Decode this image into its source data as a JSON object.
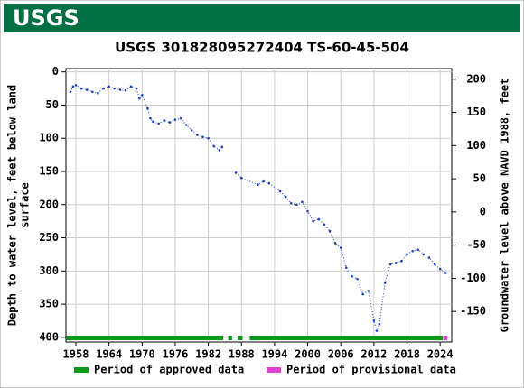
{
  "header": {
    "logo": "USGS"
  },
  "chart_data": {
    "type": "line",
    "title": "USGS 301828095272404 TS-60-45-504",
    "ylabel": [
      "Depth to water level, feet below land",
      "surface"
    ],
    "y2label": "Groundwater level above NAVD 1988, feet",
    "xlim": [
      1956.2,
      2026.1
    ],
    "xticks": [
      1958,
      1964,
      1970,
      1976,
      1982,
      1988,
      1994,
      2000,
      2006,
      2012,
      2018,
      2024
    ],
    "ylim": [
      -5,
      407
    ],
    "y_inverted": true,
    "yticks": [
      0,
      50,
      100,
      150,
      200,
      250,
      300,
      350,
      400
    ],
    "y2lim": [
      -196,
      216
    ],
    "y2ticks": [
      200,
      150,
      100,
      50,
      0,
      -50,
      -100,
      -150
    ],
    "grid": true,
    "series": [
      {
        "name": "Depth to water level",
        "color": "#1a3fc0",
        "x": [
          1957,
          1957.5,
          1958,
          1959,
          1960,
          1961,
          1962,
          1963,
          1964,
          1965,
          1966,
          1967,
          1968,
          1969,
          1969.5,
          1970,
          1971,
          1971.5,
          1972,
          1973,
          1974,
          1975,
          1976,
          1977,
          1978,
          1979,
          1980,
          1981,
          1982,
          1983,
          1984,
          1984.5,
          1985.5,
          1987,
          1988,
          1991,
          1992,
          1993,
          1995,
          1996,
          1997,
          1998,
          1999,
          2000,
          2001,
          2002,
          2003,
          2004,
          2005,
          2006,
          2007,
          2008,
          2009,
          2010,
          2011,
          2012,
          2012.5,
          2013,
          2014,
          2015,
          2016,
          2017,
          2018,
          2019,
          2020,
          2021,
          2022,
          2023,
          2024,
          2025
        ],
        "values": [
          30,
          22,
          20,
          25,
          27,
          30,
          32,
          25,
          22,
          25,
          27,
          28,
          22,
          25,
          40,
          35,
          55,
          70,
          75,
          78,
          73,
          76,
          72,
          70,
          80,
          88,
          95,
          98,
          100,
          112,
          118,
          113,
          null,
          152,
          160,
          170,
          165,
          168,
          180,
          188,
          198,
          200,
          196,
          210,
          225,
          222,
          230,
          240,
          258,
          265,
          295,
          308,
          312,
          335,
          330,
          375,
          390,
          380,
          318,
          290,
          288,
          285,
          275,
          270,
          268,
          275,
          280,
          290,
          297,
          303
        ]
      }
    ],
    "periods": [
      {
        "name": "Period of approved data",
        "color": "#0a9a1a",
        "ranges": [
          [
            1956.3,
            1984.7
          ],
          [
            1985.6,
            1986.3
          ],
          [
            1987.3,
            1988.2
          ],
          [
            1989.5,
            2024.5
          ]
        ]
      },
      {
        "name": "Period of provisional data",
        "color": "#e040d0",
        "ranges": [
          [
            2024.6,
            2025.3
          ]
        ]
      }
    ]
  }
}
